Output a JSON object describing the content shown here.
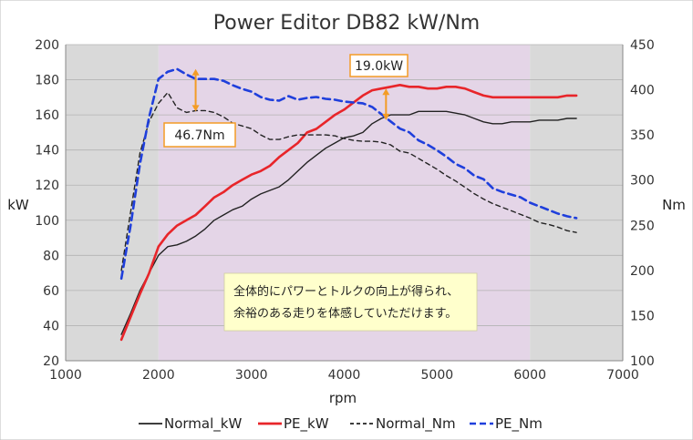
{
  "chart_data": {
    "type": "line",
    "title": "Power Editor DB82 kW/Nm",
    "xlabel": "rpm",
    "ylabel_left": "kW",
    "ylabel_right": "Nm",
    "xlim": [
      1000,
      7000
    ],
    "ylim_left": [
      20,
      200
    ],
    "ylim_right": [
      100,
      450
    ],
    "x_ticks": [
      "1000",
      "2000",
      "3000",
      "4000",
      "5000",
      "6000",
      "7000"
    ],
    "y_left_ticks": [
      "20",
      "40",
      "60",
      "80",
      "100",
      "120",
      "140",
      "160",
      "180",
      "200"
    ],
    "y_right_ticks": [
      "100",
      "150",
      "200",
      "250",
      "300",
      "350",
      "400",
      "450"
    ],
    "grid": "horizontal",
    "regions": [
      {
        "from": 1000,
        "to": 2000,
        "color": "#d9d9d9"
      },
      {
        "from": 2000,
        "to": 6000,
        "color": "#e4d5e7"
      },
      {
        "from": 6000,
        "to": 7000,
        "color": "#d9d9d9"
      }
    ],
    "series": [
      {
        "name": "Normal_kW",
        "axis": "left",
        "color": "#222222",
        "dash": "solid",
        "x": [
          1600,
          1700,
          1800,
          1900,
          2000,
          2100,
          2200,
          2300,
          2400,
          2500,
          2600,
          2700,
          2800,
          2900,
          3000,
          3100,
          3200,
          3300,
          3400,
          3500,
          3600,
          3700,
          3800,
          3900,
          4000,
          4100,
          4200,
          4300,
          4400,
          4500,
          4600,
          4700,
          4800,
          4900,
          5000,
          5100,
          5200,
          5300,
          5400,
          5500,
          5600,
          5700,
          5800,
          5900,
          6000,
          6100,
          6200,
          6300,
          6400,
          6500
        ],
        "values": [
          35,
          47,
          60,
          70,
          80,
          85,
          86,
          88,
          91,
          95,
          100,
          103,
          106,
          108,
          112,
          115,
          117,
          119,
          123,
          128,
          133,
          137,
          141,
          144,
          147,
          148,
          150,
          155,
          158,
          160,
          160,
          160,
          162,
          162,
          162,
          162,
          161,
          160,
          158,
          156,
          155,
          155,
          156,
          156,
          156,
          157,
          157,
          157,
          158,
          158
        ]
      },
      {
        "name": "PE_kW",
        "axis": "left",
        "color": "#e8252a",
        "dash": "solid",
        "x": [
          1600,
          1700,
          1800,
          1900,
          2000,
          2100,
          2200,
          2300,
          2400,
          2500,
          2600,
          2700,
          2800,
          2900,
          3000,
          3100,
          3200,
          3300,
          3400,
          3500,
          3600,
          3700,
          3800,
          3900,
          4000,
          4100,
          4200,
          4300,
          4400,
          4500,
          4600,
          4700,
          4800,
          4900,
          5000,
          5100,
          5200,
          5300,
          5400,
          5500,
          5600,
          5700,
          5800,
          5900,
          6000,
          6100,
          6200,
          6300,
          6400,
          6500
        ],
        "values": [
          32,
          45,
          58,
          70,
          85,
          92,
          97,
          100,
          103,
          108,
          113,
          116,
          120,
          123,
          126,
          128,
          131,
          136,
          140,
          144,
          150,
          152,
          156,
          160,
          163,
          167,
          171,
          174,
          175,
          176,
          177,
          176,
          176,
          175,
          175,
          176,
          176,
          175,
          173,
          171,
          170,
          170,
          170,
          170,
          170,
          170,
          170,
          170,
          171,
          171
        ]
      },
      {
        "name": "Normal_Nm",
        "axis": "right",
        "color": "#222222",
        "dash": "dashed",
        "x": [
          1600,
          1700,
          1800,
          1900,
          2000,
          2100,
          2200,
          2300,
          2400,
          2500,
          2600,
          2700,
          2800,
          2900,
          3000,
          3100,
          3200,
          3300,
          3400,
          3500,
          3600,
          3700,
          3800,
          3900,
          4000,
          4100,
          4200,
          4300,
          4400,
          4500,
          4600,
          4700,
          4800,
          4900,
          5000,
          5100,
          5200,
          5300,
          5400,
          5500,
          5600,
          5700,
          5800,
          5900,
          6000,
          6100,
          6200,
          6300,
          6400,
          6500
        ],
        "values": [
          200,
          265,
          330,
          365,
          385,
          397,
          380,
          375,
          377,
          377,
          375,
          370,
          363,
          360,
          357,
          350,
          345,
          345,
          348,
          350,
          350,
          350,
          350,
          349,
          346,
          344,
          343,
          343,
          342,
          339,
          332,
          330,
          324,
          318,
          312,
          305,
          299,
          292,
          285,
          279,
          274,
          270,
          266,
          262,
          258,
          253,
          251,
          248,
          244,
          242
        ]
      },
      {
        "name": "PE_Nm",
        "axis": "right",
        "color": "#1f3fdc",
        "dash": "dashed",
        "x": [
          1600,
          1700,
          1800,
          1900,
          2000,
          2100,
          2200,
          2300,
          2400,
          2500,
          2600,
          2700,
          2800,
          2900,
          3000,
          3100,
          3200,
          3300,
          3400,
          3500,
          3600,
          3700,
          3800,
          3900,
          4000,
          4100,
          4200,
          4300,
          4400,
          4500,
          4600,
          4700,
          4800,
          4900,
          5000,
          5100,
          5200,
          5300,
          5400,
          5500,
          5600,
          5700,
          5800,
          5900,
          6000,
          6100,
          6200,
          6300,
          6400,
          6500
        ],
        "values": [
          191,
          250,
          318,
          370,
          412,
          420,
          423,
          417,
          412,
          412,
          412,
          410,
          405,
          401,
          398,
          392,
          389,
          388,
          393,
          389,
          391,
          392,
          390,
          389,
          387,
          386,
          385,
          381,
          373,
          365,
          357,
          353,
          344,
          339,
          333,
          326,
          318,
          313,
          305,
          301,
          291,
          287,
          284,
          281,
          275,
          271,
          267,
          263,
          260,
          258
        ]
      }
    ],
    "annotations": [
      {
        "label": "19.0kW",
        "x": 4450,
        "y_from": 157,
        "y_to": 175,
        "axis": "left"
      },
      {
        "label": "46.7Nm",
        "x": 2400,
        "y_from": 376,
        "y_to": 423,
        "axis": "right"
      }
    ],
    "note": {
      "line1": "全体的にパワーとトルクの向上が得られ、",
      "line2": "余裕のある走りを体感していただけます。"
    },
    "legend": {
      "placement": "bottom",
      "entries": [
        "Normal_kW",
        "PE_kW",
        "Normal_Nm",
        "PE_Nm"
      ]
    }
  }
}
